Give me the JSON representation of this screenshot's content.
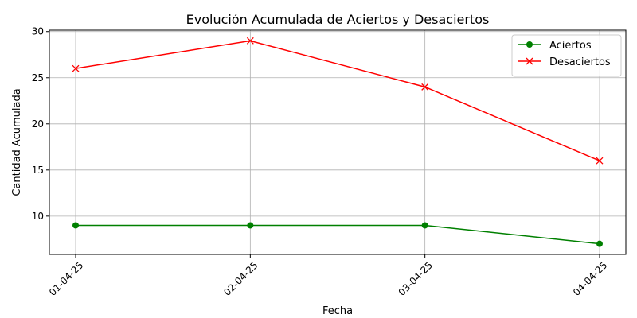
{
  "chart_data": {
    "type": "line",
    "title": "Evolución Acumulada de Aciertos y Desaciertos",
    "xlabel": "Fecha",
    "ylabel": "Cantidad Acumulada",
    "categories": [
      "01-04-25",
      "02-04-25",
      "03-04-25",
      "04-04-25"
    ],
    "ylim": [
      5.85,
      30.15
    ],
    "yticks": [
      10,
      15,
      20,
      25,
      30
    ],
    "grid": true,
    "legend_position": "top-right",
    "series": [
      {
        "name": "Aciertos",
        "values": [
          9,
          9,
          9,
          7
        ],
        "color": "#008000",
        "marker": "circle"
      },
      {
        "name": "Desaciertos",
        "values": [
          26,
          29,
          24,
          16
        ],
        "color": "#ff0000",
        "marker": "x"
      }
    ]
  }
}
